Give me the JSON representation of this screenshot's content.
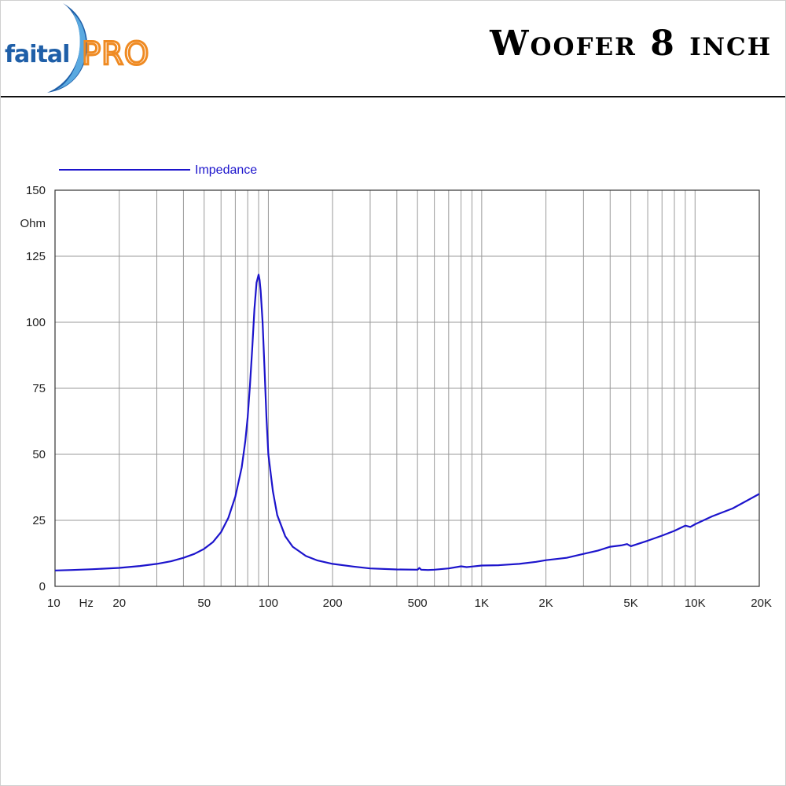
{
  "header": {
    "logo_text": "faital PRO",
    "title": "Woofer 8 inch"
  },
  "colors": {
    "curve": "#1c14cc",
    "grid": "#9a9a9a",
    "axis": "#333333",
    "logo_blue": "#1f5fa8",
    "logo_orange": "#ef8a22"
  },
  "chart_data": {
    "type": "line",
    "title": "",
    "xscale": "log",
    "xlim": [
      10,
      20000
    ],
    "ylim": [
      0,
      150
    ],
    "ylabel": "Ohm",
    "xlabel": "Hz",
    "grid": true,
    "legend_position": "top-left",
    "y_ticks": [
      0,
      25,
      50,
      75,
      100,
      125,
      150
    ],
    "x_ticks": [
      {
        "value": 10,
        "label": "10"
      },
      {
        "value": 20,
        "label": "20"
      },
      {
        "value": 50,
        "label": "50"
      },
      {
        "value": 100,
        "label": "100"
      },
      {
        "value": 200,
        "label": "200"
      },
      {
        "value": 500,
        "label": "500"
      },
      {
        "value": 1000,
        "label": "1K"
      },
      {
        "value": 2000,
        "label": "2K"
      },
      {
        "value": 5000,
        "label": "5K"
      },
      {
        "value": 10000,
        "label": "10K"
      },
      {
        "value": 20000,
        "label": "20K"
      }
    ],
    "series": [
      {
        "name": "Impedance",
        "x": [
          10,
          12,
          15,
          20,
          25,
          30,
          35,
          40,
          45,
          50,
          55,
          60,
          65,
          70,
          75,
          78,
          80,
          82,
          84,
          86,
          88,
          90,
          91,
          92,
          94,
          96,
          98,
          100,
          105,
          110,
          120,
          130,
          150,
          170,
          200,
          250,
          300,
          400,
          500,
          510,
          520,
          560,
          600,
          700,
          800,
          850,
          900,
          1000,
          1200,
          1500,
          1800,
          2000,
          2500,
          3000,
          3500,
          4000,
          4500,
          4800,
          5000,
          6000,
          7000,
          8000,
          9000,
          9500,
          10000,
          12000,
          15000,
          20000
        ],
        "values": [
          6,
          6.2,
          6.5,
          7,
          7.7,
          8.5,
          9.5,
          10.8,
          12.3,
          14.2,
          16.8,
          20.5,
          26,
          34,
          45,
          55,
          64,
          76,
          90,
          105,
          115,
          118,
          116,
          112,
          100,
          82,
          64,
          50,
          36,
          27,
          19,
          15,
          11.5,
          9.8,
          8.5,
          7.5,
          6.8,
          6.4,
          6.3,
          7,
          6.3,
          6.2,
          6.3,
          6.8,
          7.6,
          7.3,
          7.5,
          7.9,
          8,
          8.5,
          9.3,
          9.9,
          10.8,
          12.3,
          13.5,
          15,
          15.5,
          16,
          15.2,
          17.3,
          19.2,
          21,
          23,
          22.5,
          23.5,
          26.5,
          29.5,
          35
        ]
      }
    ]
  }
}
